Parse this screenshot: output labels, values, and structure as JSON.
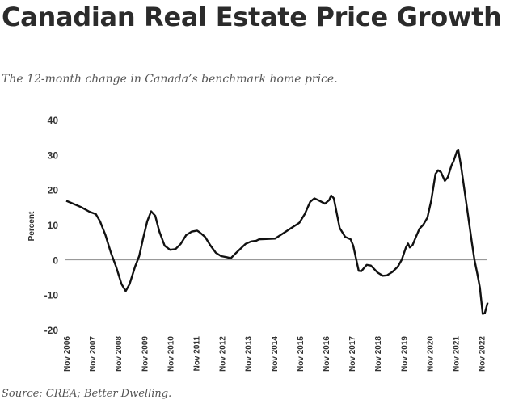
{
  "title": "Canadian Real Estate Price Growth",
  "subtitle": "The 12-month change in Canada’s benchmark home price.",
  "source": "Source: CREA; Better Dwelling.",
  "chart_data": {
    "type": "line",
    "title": "Canadian Real Estate Price Growth",
    "xlabel": "",
    "ylabel": "Percent",
    "ylim": [
      -20,
      40
    ],
    "yticks": [
      40,
      30,
      20,
      10,
      0,
      -10,
      -20
    ],
    "xticks": [
      {
        "year": 2006.83,
        "label": "Nov 2006"
      },
      {
        "year": 2007.83,
        "label": "Nov 2007"
      },
      {
        "year": 2008.83,
        "label": "Nov 2008"
      },
      {
        "year": 2009.83,
        "label": "Nov 2009"
      },
      {
        "year": 2010.83,
        "label": "Nov 2010"
      },
      {
        "year": 2011.83,
        "label": "Nov 2011"
      },
      {
        "year": 2012.83,
        "label": "Nov 2012"
      },
      {
        "year": 2013.83,
        "label": "Nov 2013"
      },
      {
        "year": 2014.83,
        "label": "Nov 2014"
      },
      {
        "year": 2015.83,
        "label": "Nov 2015"
      },
      {
        "year": 2016.83,
        "label": "Nov 2016"
      },
      {
        "year": 2017.83,
        "label": "Nov 2017"
      },
      {
        "year": 2018.83,
        "label": "Nov 2018"
      },
      {
        "year": 2019.83,
        "label": "Nov 2019"
      },
      {
        "year": 2020.83,
        "label": "Nov 2020"
      },
      {
        "year": 2021.83,
        "label": "Nov 2021"
      },
      {
        "year": 2022.83,
        "label": "Nov 2022"
      }
    ],
    "grid": false,
    "series": [
      {
        "name": "12-month change in benchmark home price",
        "color": "#111111",
        "points": [
          [
            2006.83,
            16.8
          ],
          [
            2007.09,
            16
          ],
          [
            2007.4,
            15
          ],
          [
            2007.72,
            13.7
          ],
          [
            2007.97,
            13
          ],
          [
            2008.13,
            11
          ],
          [
            2008.34,
            7
          ],
          [
            2008.55,
            2
          ],
          [
            2008.75,
            -2
          ],
          [
            2008.96,
            -7
          ],
          [
            2009.12,
            -9
          ],
          [
            2009.27,
            -7
          ],
          [
            2009.48,
            -2
          ],
          [
            2009.64,
            1
          ],
          [
            2009.79,
            6
          ],
          [
            2009.95,
            11
          ],
          [
            2010.1,
            13.8
          ],
          [
            2010.26,
            12.5
          ],
          [
            2010.42,
            8
          ],
          [
            2010.62,
            4
          ],
          [
            2010.83,
            2.8
          ],
          [
            2011.04,
            3
          ],
          [
            2011.24,
            4.5
          ],
          [
            2011.45,
            7
          ],
          [
            2011.66,
            8
          ],
          [
            2011.87,
            8.3
          ],
          [
            2011.97,
            7.8
          ],
          [
            2012.18,
            6.5
          ],
          [
            2012.39,
            4
          ],
          [
            2012.59,
            2
          ],
          [
            2012.8,
            1
          ],
          [
            2013.01,
            0.7
          ],
          [
            2013.17,
            0.4
          ],
          [
            2013.32,
            1.5
          ],
          [
            2013.53,
            3
          ],
          [
            2013.74,
            4.5
          ],
          [
            2013.95,
            5.2
          ],
          [
            2014.15,
            5.4
          ],
          [
            2014.26,
            5.8
          ],
          [
            2014.88,
            6
          ],
          [
            2015.19,
            7.5
          ],
          [
            2015.5,
            9
          ],
          [
            2015.81,
            10.5
          ],
          [
            2016.02,
            13
          ],
          [
            2016.23,
            16.5
          ],
          [
            2016.39,
            17.5
          ],
          [
            2016.54,
            17
          ],
          [
            2016.8,
            16
          ],
          [
            2016.96,
            17
          ],
          [
            2017.04,
            18.3
          ],
          [
            2017.14,
            17.5
          ],
          [
            2017.37,
            9
          ],
          [
            2017.58,
            6.5
          ],
          [
            2017.79,
            5.8
          ],
          [
            2017.89,
            4
          ],
          [
            2018.1,
            -3.2
          ],
          [
            2018.2,
            -3.3
          ],
          [
            2018.41,
            -1.5
          ],
          [
            2018.57,
            -1.7
          ],
          [
            2018.83,
            -3.7
          ],
          [
            2019.03,
            -4.6
          ],
          [
            2019.19,
            -4.5
          ],
          [
            2019.4,
            -3.5
          ],
          [
            2019.61,
            -2
          ],
          [
            2019.76,
            0
          ],
          [
            2019.92,
            3.5
          ],
          [
            2020.0,
            4.6
          ],
          [
            2020.07,
            3.5
          ],
          [
            2020.18,
            4.2
          ],
          [
            2020.28,
            6
          ],
          [
            2020.44,
            8.8
          ],
          [
            2020.59,
            10
          ],
          [
            2020.75,
            12
          ],
          [
            2020.9,
            17
          ],
          [
            2021.06,
            24.5
          ],
          [
            2021.16,
            25.5
          ],
          [
            2021.27,
            25
          ],
          [
            2021.42,
            22.5
          ],
          [
            2021.53,
            23.5
          ],
          [
            2021.68,
            27
          ],
          [
            2021.75,
            28
          ],
          [
            2021.89,
            31
          ],
          [
            2021.94,
            31.2
          ],
          [
            2022.04,
            27
          ],
          [
            2022.25,
            16
          ],
          [
            2022.46,
            5
          ],
          [
            2022.56,
            0
          ],
          [
            2022.67,
            -4
          ],
          [
            2022.77,
            -8
          ],
          [
            2022.88,
            -15.5
          ],
          [
            2022.96,
            -15.3
          ],
          [
            2023.07,
            -12.3
          ]
        ]
      }
    ]
  }
}
